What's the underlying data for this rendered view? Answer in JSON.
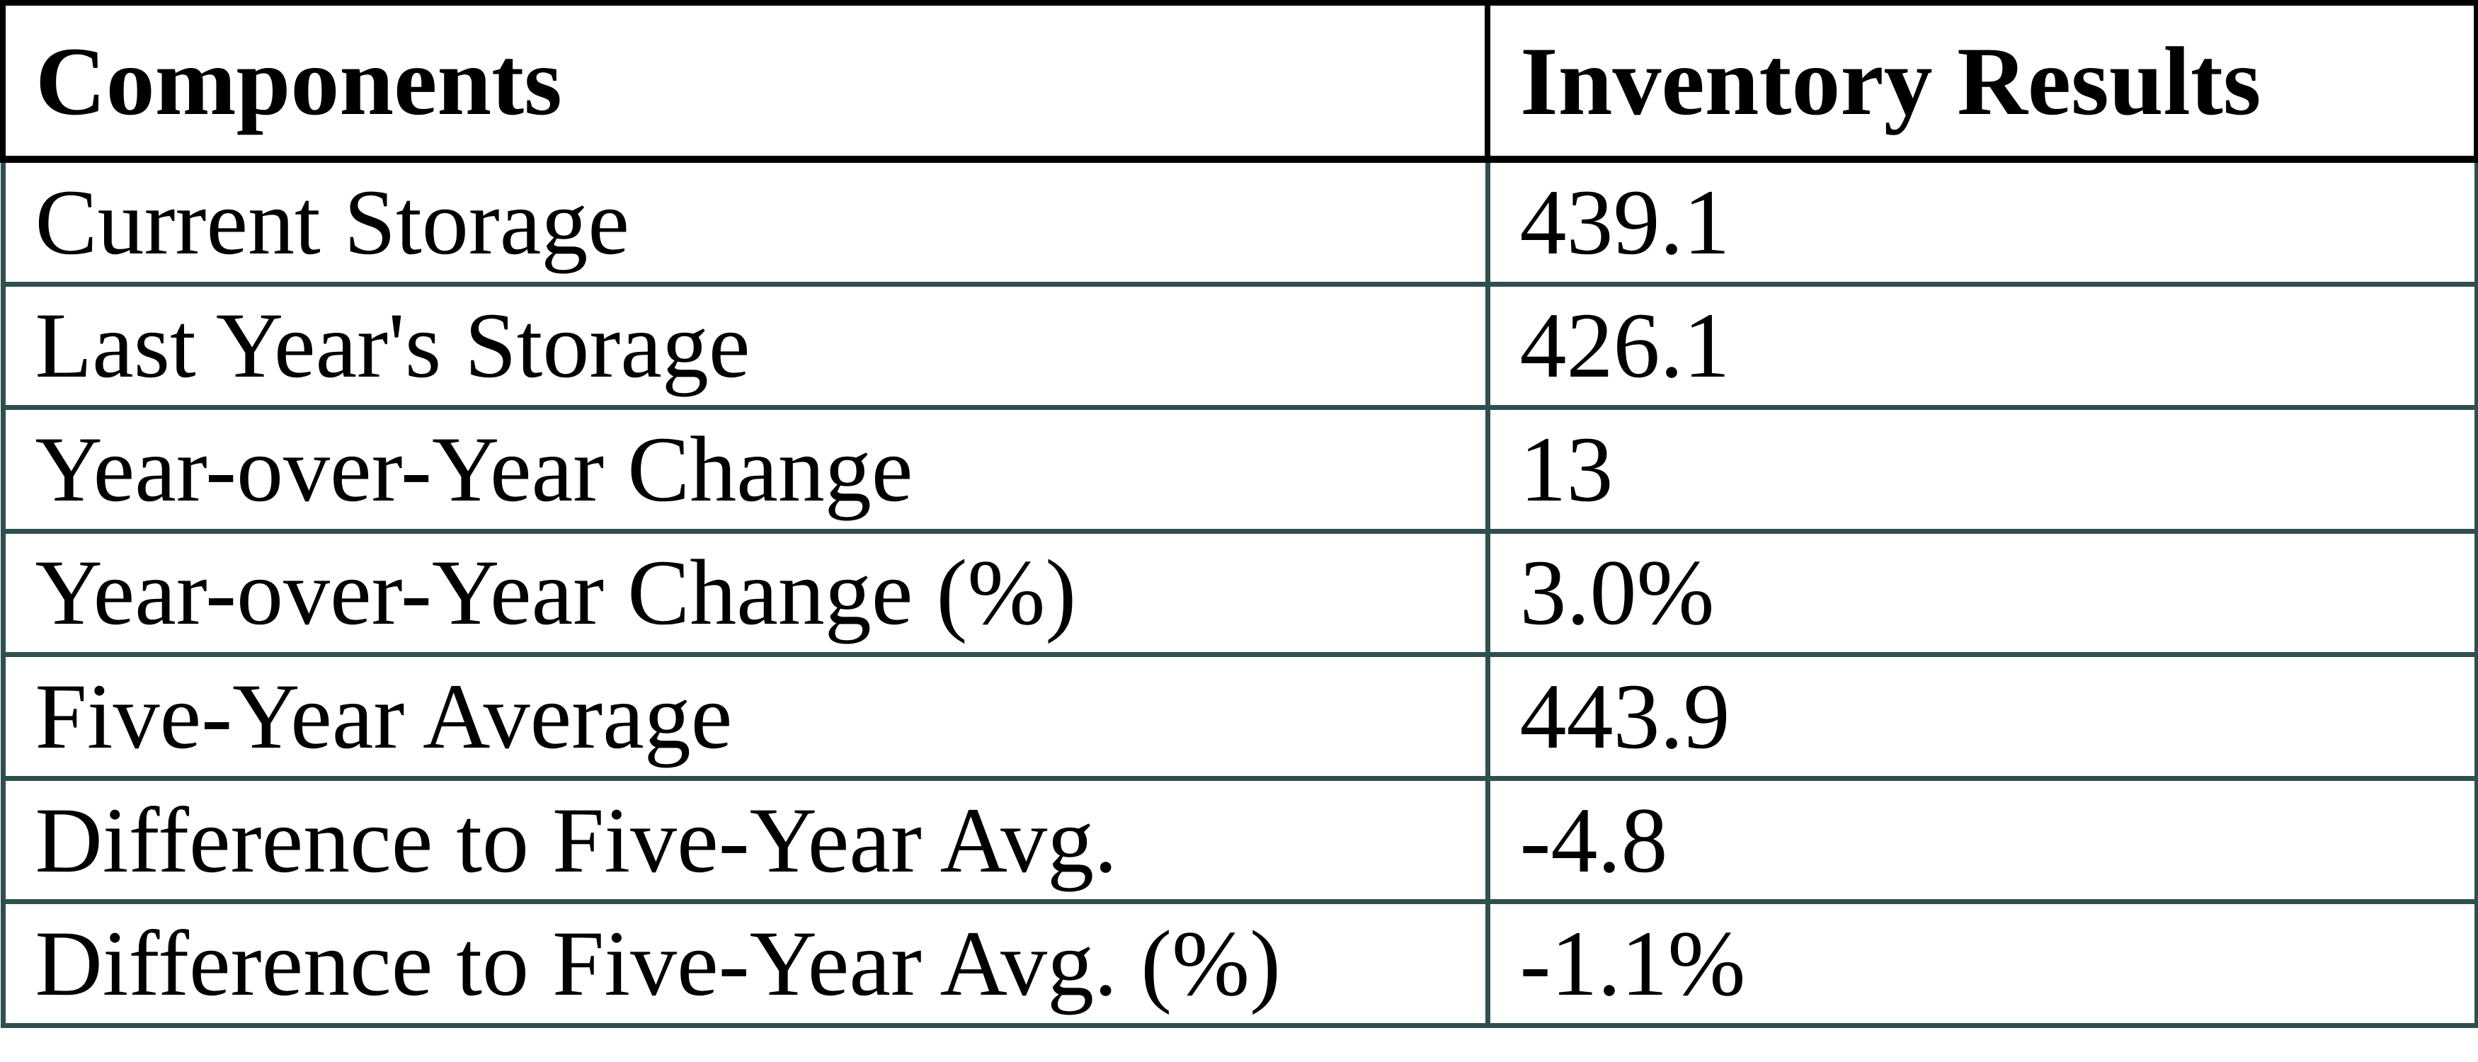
{
  "table": {
    "headers": [
      "Components",
      "Inventory Results"
    ],
    "rows": [
      {
        "component": "Current Storage",
        "value": "439.1"
      },
      {
        "component": "Last Year's Storage",
        "value": "426.1"
      },
      {
        "component": "Year-over-Year Change",
        "value": "13"
      },
      {
        "component": "Year-over-Year Change (%)",
        "value": "3.0%"
      },
      {
        "component": "Five-Year Average",
        "value": "443.9"
      },
      {
        "component": "Difference to Five-Year Avg.",
        "value": "-4.8"
      },
      {
        "component": "Difference to Five-Year Avg. (%)",
        "value": "-1.1%"
      }
    ]
  },
  "colors": {
    "header_border": "#000000",
    "body_border": "#2f4f4f",
    "text": "#000000",
    "background": "#ffffff"
  },
  "chart_data": {
    "type": "table",
    "title": "",
    "columns": [
      "Components",
      "Inventory Results"
    ],
    "rows": [
      [
        "Current Storage",
        "439.1"
      ],
      [
        "Last Year's Storage",
        "426.1"
      ],
      [
        "Year-over-Year Change",
        "13"
      ],
      [
        "Year-over-Year Change (%)",
        "3.0%"
      ],
      [
        "Five-Year Average",
        "443.9"
      ],
      [
        "Difference to Five-Year Avg.",
        "-4.8"
      ],
      [
        "Difference to Five-Year Avg. (%)",
        "-1.1%"
      ]
    ]
  }
}
